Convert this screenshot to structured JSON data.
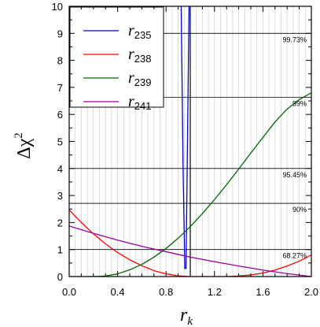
{
  "chart_data": {
    "type": "line",
    "xlabel": {
      "base": "r",
      "sub": "k"
    },
    "ylabel": {
      "base": "Δχ",
      "sup": "2"
    },
    "xlim": [
      0.0,
      2.0
    ],
    "ylim": [
      0,
      10
    ],
    "x_ticks": [
      "0.0",
      "0.4",
      "0.8",
      "1.2",
      "1.6",
      "2.0"
    ],
    "y_ticks": [
      "0",
      "1",
      "2",
      "3",
      "4",
      "5",
      "6",
      "7",
      "8",
      "9",
      "10"
    ],
    "grid": true,
    "legend_position": "top-left",
    "reference_lines": [
      {
        "label": "68.27%",
        "y": 1.0
      },
      {
        "label": "90%",
        "y": 2.71
      },
      {
        "label": "95.45%",
        "y": 4.0
      },
      {
        "label": "99%",
        "y": 6.63
      },
      {
        "label": "99.73%",
        "y": 9.0
      }
    ],
    "vertical_marker": {
      "x": 1.0
    },
    "series": [
      {
        "name": "r",
        "sub": "235",
        "color": "#0000cc",
        "x": [
          0.925,
          0.94,
          0.955,
          0.965,
          0.975,
          0.99
        ],
        "y": [
          10.0,
          4.2,
          0.3,
          0.3,
          4.2,
          10.0
        ]
      },
      {
        "name": "r",
        "sub": "238",
        "color": "#ff0000",
        "x": [
          0.0,
          0.1,
          0.2,
          0.3,
          0.4,
          0.5,
          0.6,
          0.7,
          0.8,
          0.9,
          1.0,
          1.1,
          1.2,
          1.3,
          1.4,
          1.5,
          1.6,
          1.7,
          1.8,
          1.9,
          2.0
        ],
        "y": [
          2.47,
          2.0,
          1.58,
          1.21,
          0.89,
          0.62,
          0.4,
          0.22,
          0.1,
          0.025,
          0.0,
          0.0,
          0.0,
          0.0,
          0.02,
          0.06,
          0.13,
          0.24,
          0.39,
          0.57,
          0.8
        ]
      },
      {
        "name": "r",
        "sub": "239",
        "color": "#006400",
        "x": [
          0.0,
          0.2,
          0.3,
          0.4,
          0.5,
          0.6,
          0.7,
          0.8,
          0.9,
          1.0,
          1.1,
          1.2,
          1.3,
          1.4,
          1.5,
          1.6,
          1.7,
          1.8,
          1.9,
          2.0
        ],
        "y": [
          0.0,
          0.0,
          0.02,
          0.1,
          0.25,
          0.45,
          0.72,
          1.04,
          1.42,
          1.85,
          2.33,
          2.85,
          3.4,
          3.98,
          4.57,
          5.15,
          5.72,
          6.2,
          6.55,
          6.8
        ]
      },
      {
        "name": "r",
        "sub": "241",
        "color": "#990099",
        "x": [
          0.0,
          0.2,
          0.4,
          0.6,
          0.8,
          1.0,
          1.2,
          1.4,
          1.6,
          1.8,
          2.0
        ],
        "y": [
          1.87,
          1.6,
          1.35,
          1.12,
          0.92,
          0.72,
          0.55,
          0.39,
          0.24,
          0.11,
          0.0
        ]
      }
    ]
  }
}
